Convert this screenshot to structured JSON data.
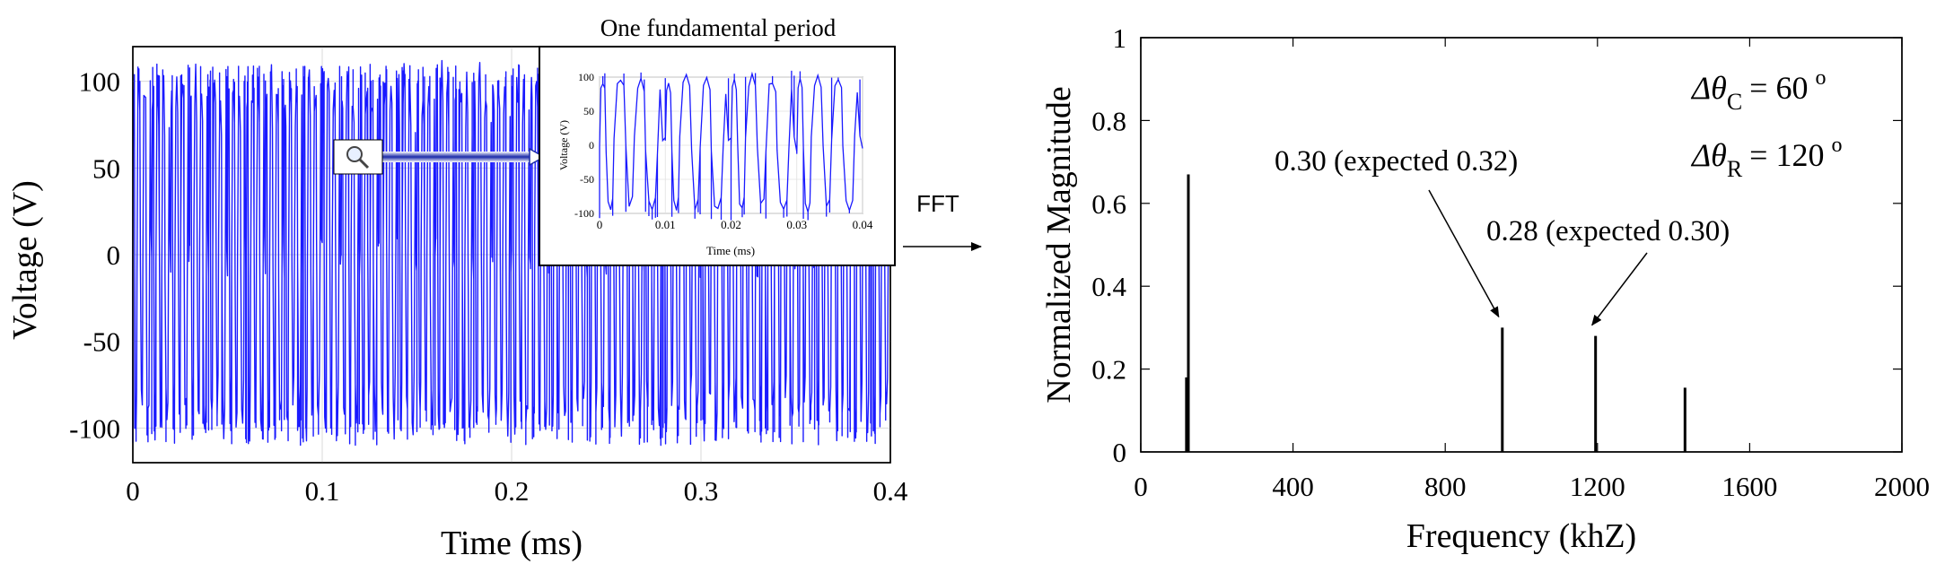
{
  "chart_data": [
    {
      "type": "line",
      "xlabel": "Time (ms)",
      "ylabel": "Voltage (V)",
      "xlim": [
        0,
        0.4
      ],
      "ylim": [
        -120,
        120
      ],
      "xticks": [
        "0",
        "0.1",
        "0.2",
        "0.3",
        "0.4"
      ],
      "yticks": [
        "100",
        "50",
        "0",
        "-50",
        "-100"
      ],
      "grid": true,
      "series_color": "#1a1aff",
      "waveform": {
        "period_ms": 0.01,
        "levels_V": [
          -90,
          -80,
          0,
          80,
          90
        ],
        "peak_V": 110
      },
      "inset": {
        "title": "One fundamental period",
        "xlabel": "Time (ms)",
        "ylabel": "Voltage (V)",
        "xlim": [
          0,
          0.04
        ],
        "ylim": [
          -100,
          100
        ],
        "xticks": [
          "0",
          "0.01",
          "0.02",
          "0.03",
          "0.04"
        ],
        "yticks": [
          "100",
          "50",
          "0",
          "-50",
          "-100"
        ]
      }
    },
    {
      "type": "bar",
      "xlabel": "Frequency (khZ)",
      "ylabel": "Normalized Magnitude",
      "xlim": [
        0,
        2000
      ],
      "ylim": [
        0,
        1
      ],
      "xticks": [
        "0",
        "400",
        "800",
        "1200",
        "1600",
        "2000"
      ],
      "yticks": [
        "1",
        "0.8",
        "0.6",
        "0.4",
        "0.2",
        "0"
      ],
      "grid": true,
      "bars": [
        {
          "x": 120,
          "value": 0.18
        },
        {
          "x": 125,
          "value": 0.67
        },
        {
          "x": 950,
          "value": 0.3
        },
        {
          "x": 1195,
          "value": 0.28
        },
        {
          "x": 1430,
          "value": 0.155
        }
      ],
      "annotations": [
        {
          "text": "0.30 (expected 0.32)",
          "target_x": 950,
          "target_value": 0.3
        },
        {
          "text": "0.28 (expected 0.30)",
          "target_x": 1195,
          "target_value": 0.28
        }
      ],
      "params": {
        "theta_c_label": "Δθ",
        "theta_c_sub": "C",
        "theta_c_value": "= 60",
        "theta_c_unit": "o",
        "theta_r_label": "Δθ",
        "theta_r_sub": "R",
        "theta_r_value": "= 120",
        "theta_r_unit": "o"
      }
    }
  ],
  "fft_label": "FFT",
  "zoom_icon": "magnifier-icon"
}
